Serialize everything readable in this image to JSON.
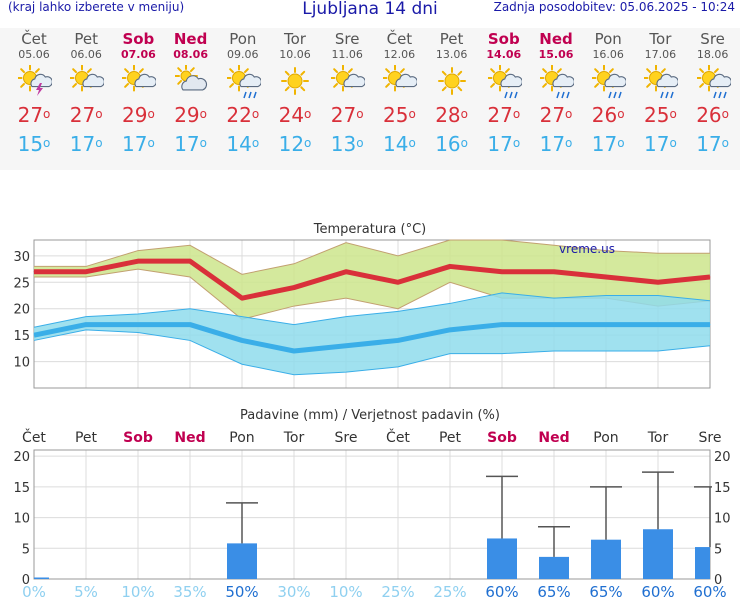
{
  "header": {
    "menu_hint": "(kraj lahko izberete v meniju)",
    "title": "Ljubljana 14 dni",
    "updated": "Zadnja posodobitev: 05.06.2025 - 10:24"
  },
  "days": [
    {
      "name": "Čet",
      "date": "05.06",
      "weekend": false,
      "icon": "sun-cloud-lightning",
      "tmax": "27",
      "tmin": "15"
    },
    {
      "name": "Pet",
      "date": "06.06",
      "weekend": false,
      "icon": "sun-cloud",
      "tmax": "27",
      "tmin": "17"
    },
    {
      "name": "Sob",
      "date": "07.06",
      "weekend": true,
      "icon": "sun-cloud",
      "tmax": "29",
      "tmin": "17"
    },
    {
      "name": "Ned",
      "date": "08.06",
      "weekend": true,
      "icon": "cloud-sun",
      "tmax": "29",
      "tmin": "17"
    },
    {
      "name": "Pon",
      "date": "09.06",
      "weekend": false,
      "icon": "sun-cloud-rain",
      "tmax": "22",
      "tmin": "14"
    },
    {
      "name": "Tor",
      "date": "10.06",
      "weekend": false,
      "icon": "sun",
      "tmax": "24",
      "tmin": "12"
    },
    {
      "name": "Sre",
      "date": "11.06",
      "weekend": false,
      "icon": "sun-cloud",
      "tmax": "27",
      "tmin": "13"
    },
    {
      "name": "Čet",
      "date": "12.06",
      "weekend": false,
      "icon": "sun-cloud",
      "tmax": "25",
      "tmin": "14"
    },
    {
      "name": "Pet",
      "date": "13.06",
      "weekend": false,
      "icon": "sun",
      "tmax": "28",
      "tmin": "16"
    },
    {
      "name": "Sob",
      "date": "14.06",
      "weekend": true,
      "icon": "sun-cloud-rain",
      "tmax": "27",
      "tmin": "17"
    },
    {
      "name": "Ned",
      "date": "15.06",
      "weekend": true,
      "icon": "sun-cloud-rain",
      "tmax": "27",
      "tmin": "17"
    },
    {
      "name": "Pon",
      "date": "16.06",
      "weekend": false,
      "icon": "sun-cloud-rain",
      "tmax": "26",
      "tmin": "17"
    },
    {
      "name": "Tor",
      "date": "17.06",
      "weekend": false,
      "icon": "sun-cloud-rain",
      "tmax": "25",
      "tmin": "17"
    },
    {
      "name": "Sre",
      "date": "18.06",
      "weekend": false,
      "icon": "sun-cloud-rain",
      "tmax": "26",
      "tmin": "17"
    }
  ],
  "colors": {
    "weekend": "#c00050",
    "tmax": "#d9303a",
    "tmin": "#3aaee8",
    "max_band": "#cde58c",
    "min_band": "#8fdcec",
    "precip_bar": "#3a8ee6"
  },
  "chart_data": [
    {
      "type": "line",
      "title": "Temperatura (°C)",
      "watermark": "vreme.us",
      "x": [
        "Čet",
        "Pet",
        "Sob",
        "Ned",
        "Pon",
        "Tor",
        "Sre",
        "Čet",
        "Pet",
        "Sob",
        "Ned",
        "Pon",
        "Tor",
        "Sre"
      ],
      "ylim": [
        5,
        33
      ],
      "yticks": [
        10,
        15,
        20,
        25,
        30
      ],
      "grid": true,
      "series": [
        {
          "role": "tmax",
          "values": [
            27,
            27,
            29,
            29,
            22,
            24,
            27,
            25,
            28,
            27,
            27,
            26,
            25,
            26
          ]
        },
        {
          "role": "tmin",
          "values": [
            15,
            17,
            17,
            17,
            14,
            12,
            13,
            14,
            16,
            17,
            17,
            17,
            17,
            17
          ]
        }
      ],
      "tmax_band_upper": [
        28,
        28,
        31,
        32,
        26.5,
        28.5,
        32.5,
        30,
        33,
        33,
        32,
        31,
        30.5,
        30.5
      ],
      "tmax_band_lower": [
        26,
        26,
        27.5,
        26,
        18,
        20.5,
        22,
        20,
        25,
        22,
        22,
        22,
        20.5,
        21.5
      ],
      "tmin_band_upper": [
        16.5,
        18.5,
        19,
        20,
        18.5,
        17,
        18.5,
        19.5,
        21,
        23,
        22,
        22.5,
        22.5,
        21.5
      ],
      "tmin_band_lower": [
        14,
        16,
        15.5,
        14,
        9.5,
        7.5,
        8,
        9,
        11.5,
        11.5,
        12,
        12,
        12,
        13
      ]
    },
    {
      "type": "bar",
      "title": "Padavine (mm) / Verjetnost padavin (%)",
      "categories": [
        "Čet",
        "Pet",
        "Sob",
        "Ned",
        "Pon",
        "Tor",
        "Sre",
        "Čet",
        "Pet",
        "Sob",
        "Ned",
        "Pon",
        "Tor",
        "Sre"
      ],
      "values": [
        0.2,
        0,
        0,
        0,
        5.8,
        0,
        0,
        0,
        0,
        6.6,
        3.6,
        6.4,
        8.1,
        5.2
      ],
      "error_high": [
        0,
        0,
        0,
        0,
        12.4,
        0,
        0,
        0,
        0,
        16.7,
        8.5,
        15,
        17.4,
        15
      ],
      "probability": [
        "0%",
        "5%",
        "10%",
        "35%",
        "50%",
        "30%",
        "10%",
        "25%",
        "25%",
        "60%",
        "65%",
        "65%",
        "60%",
        "60%"
      ],
      "ylim": [
        0,
        21
      ],
      "yticks": [
        0,
        5,
        10,
        15,
        20
      ],
      "grid": true
    }
  ]
}
